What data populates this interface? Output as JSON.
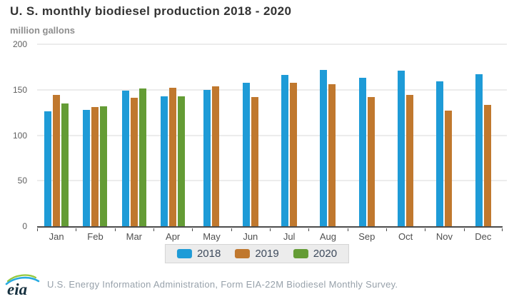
{
  "chart_data": {
    "type": "bar",
    "title": "U. S. monthly biodiesel production 2018 - 2020",
    "ylabel": "million gallons",
    "ylim": [
      0,
      200
    ],
    "yticks": [
      0,
      50,
      100,
      150,
      200
    ],
    "grid": true,
    "legend_position": "bottom",
    "categories": [
      "Jan",
      "Feb",
      "Mar",
      "Apr",
      "May",
      "Jun",
      "Jul",
      "Aug",
      "Sep",
      "Oct",
      "Nov",
      "Dec"
    ],
    "series": [
      {
        "name": "2018",
        "color": "#1e9bd7",
        "values": [
          126,
          128,
          149,
          143,
          150,
          158,
          166,
          172,
          163,
          171,
          159,
          167
        ]
      },
      {
        "name": "2019",
        "color": "#c0782e",
        "values": [
          144,
          131,
          141,
          152,
          154,
          142,
          158,
          156,
          142,
          144,
          127,
          133
        ]
      },
      {
        "name": "2020",
        "color": "#649c35",
        "values": [
          135,
          132,
          151,
          143,
          null,
          null,
          null,
          null,
          null,
          null,
          null,
          null
        ]
      }
    ]
  },
  "footer": {
    "logo_text": "eia",
    "source": "U.S. Energy Information Administration, Form EIA-22M Biodiesel Monthly Survey."
  }
}
